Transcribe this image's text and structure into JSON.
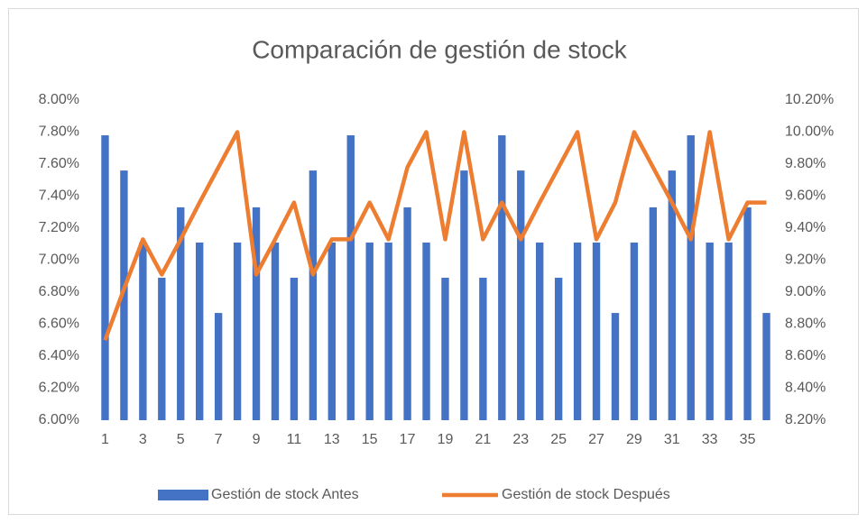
{
  "chart_data": {
    "type": "bar_line",
    "title": "Comparación de gestión de stock",
    "categories": [
      "1",
      null,
      "3",
      null,
      "5",
      null,
      "7",
      null,
      "9",
      null,
      "11",
      null,
      "13",
      null,
      "15",
      null,
      "17",
      null,
      "19",
      null,
      "21",
      null,
      "23",
      null,
      "25",
      null,
      "27",
      null,
      "29",
      null,
      "31",
      null,
      "33",
      null,
      "35",
      null
    ],
    "series": [
      {
        "name": "Gestión de stock Antes",
        "type": "bar",
        "axis": "y",
        "color": "#4472c4",
        "values": [
          7.78,
          7.56,
          7.11,
          6.89,
          7.33,
          7.11,
          6.67,
          7.11,
          7.33,
          7.11,
          6.89,
          7.56,
          7.11,
          7.78,
          7.11,
          7.11,
          7.33,
          7.11,
          6.89,
          7.56,
          6.89,
          7.78,
          7.56,
          7.11,
          6.89,
          7.11,
          7.11,
          6.67,
          7.11,
          7.33,
          7.56,
          7.78,
          7.11,
          7.11,
          7.33,
          6.67
        ]
      },
      {
        "name": "Gestión de stock Después",
        "type": "line",
        "axis": "y2",
        "color": "#ed7d31",
        "values": [
          8.7,
          9.02,
          9.33,
          9.11,
          9.33,
          9.56,
          9.78,
          10.0,
          9.11,
          9.33,
          9.56,
          9.11,
          9.33,
          9.33,
          9.56,
          9.33,
          9.78,
          10.0,
          9.33,
          10.0,
          9.33,
          9.56,
          9.33,
          9.56,
          9.78,
          10.0,
          9.33,
          9.56,
          10.0,
          9.78,
          9.56,
          9.33,
          10.0,
          9.33,
          9.56,
          9.56
        ]
      }
    ],
    "ylim": [
      6.0,
      8.0
    ],
    "yticks": [
      {
        "value": 6.0,
        "label": "6.00%"
      },
      {
        "value": 6.2,
        "label": "6.20%"
      },
      {
        "value": 6.4,
        "label": "6.40%"
      },
      {
        "value": 6.6,
        "label": "6.60%"
      },
      {
        "value": 6.8,
        "label": "6.80%"
      },
      {
        "value": 7.0,
        "label": "7.00%"
      },
      {
        "value": 7.2,
        "label": "7.20%"
      },
      {
        "value": 7.4,
        "label": "7.40%"
      },
      {
        "value": 7.6,
        "label": "7.60%"
      },
      {
        "value": 7.8,
        "label": "7.80%"
      },
      {
        "value": 8.0,
        "label": "8.00%"
      }
    ],
    "y2lim": [
      8.2,
      10.2
    ],
    "y2ticks": [
      {
        "value": 8.2,
        "label": "8.20%"
      },
      {
        "value": 8.4,
        "label": "8.40%"
      },
      {
        "value": 8.6,
        "label": "8.60%"
      },
      {
        "value": 8.8,
        "label": "8.80%"
      },
      {
        "value": 9.0,
        "label": "9.00%"
      },
      {
        "value": 9.2,
        "label": "9.20%"
      },
      {
        "value": 9.4,
        "label": "9.40%"
      },
      {
        "value": 9.6,
        "label": "9.60%"
      },
      {
        "value": 9.8,
        "label": "9.80%"
      },
      {
        "value": 10.0,
        "label": "10.00%"
      },
      {
        "value": 10.2,
        "label": "10.20%"
      }
    ],
    "legend": "bottom"
  }
}
